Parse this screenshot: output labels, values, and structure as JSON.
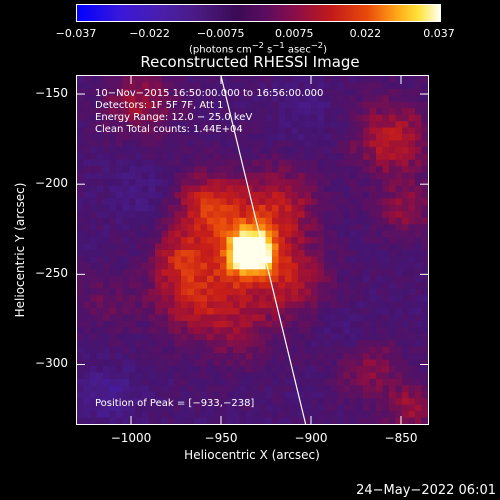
{
  "chart_data": {
    "type": "heatmap",
    "title": "Reconstructed RHESSI Image",
    "xlabel": "Heliocentric X (arcsec)",
    "ylabel": "Heliocentric Y (arcsec)",
    "xlim": [
      -1030,
      -835
    ],
    "ylim": [
      -333,
      -140
    ],
    "x_ticks": [
      -1000,
      -950,
      -900,
      -850
    ],
    "y_ticks": [
      -150,
      -200,
      -250,
      -300
    ],
    "colorbar": {
      "range": [
        -0.037,
        0.037
      ],
      "tick_values": [
        -0.037,
        -0.022,
        -0.0075,
        0.0075,
        0.022,
        0.037
      ],
      "tick_labels": [
        "−0.037",
        "−0.022",
        "−0.0075",
        "0.0075",
        "0.022",
        "0.037"
      ],
      "unit_main": "(photons cm",
      "unit_sup1": "−2",
      "unit_mid": " s",
      "unit_sup2": "−1",
      "unit_mid2": " asec",
      "unit_sup3": "−2",
      "unit_end": ")"
    },
    "annotations": {
      "time_range": "10−Nov−2015 16:50:00.000 to 16:56:00.000",
      "detectors": "Detectors: 1F 5F 7F, Att 1",
      "energy": "Energy Range: 12.0 − 25.0 keV",
      "method": "Clean     Total counts: 1.44E+04",
      "peak": "Position of Peak = [−933,−238]"
    },
    "peak": {
      "x": -933,
      "y": -238
    },
    "limb_line": [
      [
        -950,
        -140
      ],
      [
        -903,
        -333
      ]
    ],
    "colors": {
      "background": "#000000",
      "text": "#ffffff"
    }
  },
  "footer": {
    "timestamp": "24−May−2022 06:01"
  }
}
